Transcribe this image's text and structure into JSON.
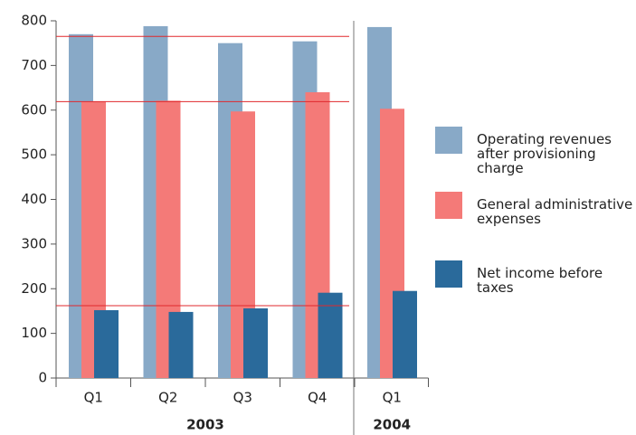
{
  "chart_data": {
    "type": "bar",
    "categories": [
      "Q1",
      "Q2",
      "Q3",
      "Q4",
      "Q1"
    ],
    "groups": [
      {
        "name": "2003",
        "size": 4
      },
      {
        "name": "2004",
        "size": 1
      }
    ],
    "series": [
      {
        "name": "Operating revenues after provisioning charge",
        "color": "#88a9c7",
        "values": [
          770,
          788,
          750,
          754,
          786
        ]
      },
      {
        "name": "General administrative expenses",
        "color": "#f47a78",
        "values": [
          619,
          621,
          597,
          640,
          603
        ]
      },
      {
        "name": "Net income before taxes",
        "color": "#2a6a9b",
        "values": [
          152,
          148,
          156,
          191,
          195
        ]
      }
    ],
    "reference_lines": {
      "color": "#e0282c",
      "values": [
        765,
        619,
        162
      ]
    },
    "ylim": [
      0,
      800
    ],
    "yticks": [
      0,
      100,
      200,
      300,
      400,
      500,
      600,
      700,
      800
    ],
    "legend": "right"
  }
}
